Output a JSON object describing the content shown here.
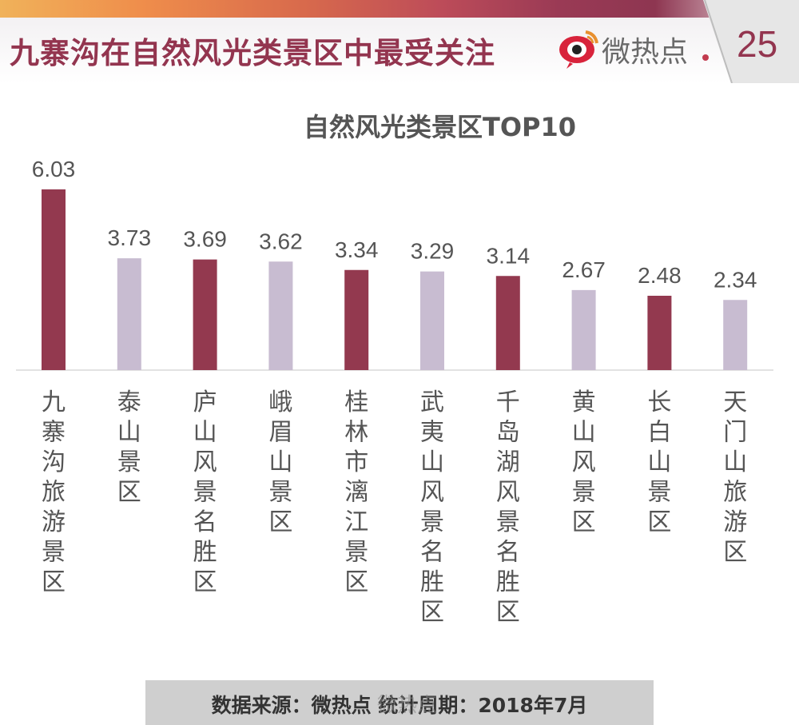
{
  "header": {
    "title": "九寨沟在自然风光类景区中最受关注",
    "brand": "微热点",
    "page_number": "25"
  },
  "chart_data": {
    "type": "bar",
    "title": "自然风光类景区TOP10",
    "categories": [
      "九寨沟旅游景区",
      "泰山景区",
      "庐山风景名胜区",
      "峨眉山景区",
      "桂林市漓江景区",
      "武夷山风景名胜区",
      "千岛湖风景名胜区",
      "黄山风景区",
      "长白山景区",
      "天门山旅游区"
    ],
    "values": [
      6.03,
      3.73,
      3.69,
      3.62,
      3.34,
      3.29,
      3.14,
      2.67,
      2.48,
      2.34
    ],
    "value_labels": [
      "6.03",
      "3.73",
      "3.69",
      "3.62",
      "3.34",
      "3.29",
      "3.14",
      "2.67",
      "2.48",
      "2.34"
    ],
    "colors": [
      "#93394f",
      "#c8bcd1"
    ],
    "ylim": [
      0,
      6.5
    ],
    "xlabel": "",
    "ylabel": "",
    "grid": false,
    "legend": "none"
  },
  "footer": {
    "source_text": "数据来源：微热点 统计周期：2018年7月",
    "watermark": "微热点"
  }
}
